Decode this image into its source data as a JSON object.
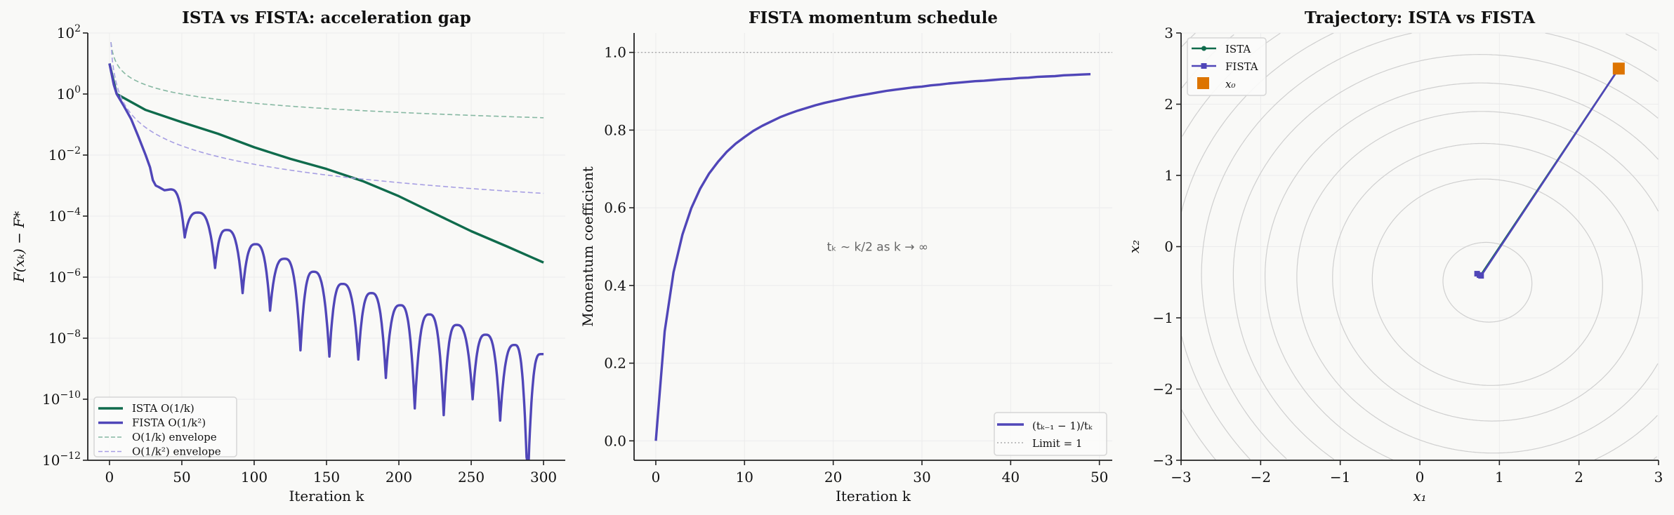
{
  "colors": {
    "background": "#f9f9f7",
    "ista": "#0f6b4c",
    "fista": "#5046b8",
    "env1": "#86b8a2",
    "env2": "#a79fe3",
    "x0": "#dd7400",
    "contour": "#cfcfcf",
    "grid": "#ececec",
    "limit": "#aaaaaa"
  },
  "chart_data": [
    {
      "type": "line",
      "title": "ISTA vs FISTA: acceleration gap",
      "xlabel": "Iteration k",
      "ylabel": "F(xₖ) − F*",
      "yscale": "log",
      "xlim": [
        -15,
        315
      ],
      "ylim": [
        1e-12,
        100
      ],
      "xticks": [
        {
          "v": 0,
          "label": "0"
        },
        {
          "v": 50,
          "label": "50"
        },
        {
          "v": 100,
          "label": "100"
        },
        {
          "v": 150,
          "label": "150"
        },
        {
          "v": 200,
          "label": "200"
        },
        {
          "v": 250,
          "label": "250"
        },
        {
          "v": 300,
          "label": "300"
        }
      ],
      "yticks": [
        {
          "v": 100,
          "base": "10",
          "exp": "2"
        },
        {
          "v": 1,
          "base": "10",
          "exp": "0"
        },
        {
          "v": 0.01,
          "base": "10",
          "exp": "−2"
        },
        {
          "v": 0.0001,
          "base": "10",
          "exp": "−4"
        },
        {
          "v": 1e-06,
          "base": "10",
          "exp": "−6"
        },
        {
          "v": 1e-08,
          "base": "10",
          "exp": "−8"
        },
        {
          "v": 1e-10,
          "base": "10",
          "exp": "−10"
        },
        {
          "v": 1e-12,
          "base": "10",
          "exp": "−12"
        }
      ],
      "grid": true,
      "legend_position": "lower-left",
      "series": [
        {
          "name": "ISTA O(1/k)",
          "color_key": "ista",
          "style": "solid",
          "points": [
            [
              0,
              10
            ],
            [
              5,
              1.0
            ],
            [
              25,
              0.3
            ],
            [
              50,
              0.12
            ],
            [
              75,
              0.05
            ],
            [
              100,
              0.018
            ],
            [
              125,
              0.0075
            ],
            [
              150,
              0.0035
            ],
            [
              175,
              0.0014
            ],
            [
              200,
              0.00045
            ],
            [
              225,
              0.00012
            ],
            [
              250,
              3.2e-05
            ],
            [
              275,
              1e-05
            ],
            [
              300,
              3e-06
            ]
          ]
        },
        {
          "name": "FISTA O(1/k²)",
          "color_key": "fista",
          "style": "solid",
          "points": [
            [
              0,
              10
            ],
            [
              3,
              2
            ],
            [
              5,
              1
            ],
            [
              10,
              0.4
            ],
            [
              15,
              0.15
            ],
            [
              20,
              0.04
            ],
            [
              25,
              0.01
            ],
            [
              28,
              0.004
            ],
            [
              30,
              0.0015
            ],
            [
              32,
              0.001
            ],
            [
              34,
              0.0009
            ],
            [
              38,
              0.0007
            ],
            [
              42,
              0.00075
            ],
            [
              52,
              2e-05
            ],
            [
              61,
              0.00013
            ],
            [
              73,
              2e-06
            ],
            [
              81,
              3.5e-05
            ],
            [
              92,
              3e-07
            ],
            [
              101,
              1.2e-05
            ],
            [
              111,
              8e-08
            ],
            [
              121,
              4e-06
            ],
            [
              132,
              4e-09
            ],
            [
              141,
              1.5e-06
            ],
            [
              152,
              2.5e-09
            ],
            [
              161,
              6e-07
            ],
            [
              172,
              2e-09
            ],
            [
              181,
              3e-07
            ],
            [
              191,
              5e-10
            ],
            [
              201,
              1.2e-07
            ],
            [
              211,
              5e-11
            ],
            [
              221,
              6e-08
            ],
            [
              231,
              3e-11
            ],
            [
              240,
              2.7e-08
            ],
            [
              251,
              1e-10
            ],
            [
              260,
              1.3e-08
            ],
            [
              270,
              2e-11
            ],
            [
              280,
              6e-09
            ],
            [
              289,
              1e-13
            ],
            [
              298,
              3e-09
            ],
            [
              300,
              3e-09
            ]
          ]
        },
        {
          "name": "O(1/k) envelope",
          "color_key": "env1",
          "style": "dashed",
          "formula_C": 50,
          "power": 1,
          "krange": [
            1,
            300
          ]
        },
        {
          "name": "O(1/k²) envelope",
          "color_key": "env2",
          "style": "dashed",
          "formula_C": 50,
          "power": 2,
          "krange": [
            1,
            300
          ]
        }
      ]
    },
    {
      "type": "line",
      "title": "FISTA momentum schedule",
      "xlabel": "Iteration k",
      "ylabel": "Momentum coefficient",
      "xlim": [
        -2.45,
        51.45
      ],
      "ylim": [
        -0.05,
        1.05
      ],
      "xticks": [
        {
          "v": 0,
          "label": "0"
        },
        {
          "v": 10,
          "label": "10"
        },
        {
          "v": 20,
          "label": "20"
        },
        {
          "v": 30,
          "label": "30"
        },
        {
          "v": 40,
          "label": "40"
        },
        {
          "v": 50,
          "label": "50"
        }
      ],
      "yticks": [
        {
          "v": 0,
          "label": "0.0"
        },
        {
          "v": 0.2,
          "label": "0.2"
        },
        {
          "v": 0.4,
          "label": "0.4"
        },
        {
          "v": 0.6,
          "label": "0.6"
        },
        {
          "v": 0.8,
          "label": "0.8"
        },
        {
          "v": 1.0,
          "label": "1.0"
        }
      ],
      "grid": true,
      "legend_position": "lower-right",
      "annotation": {
        "text": "tₖ ∼ k/2 as k → ∞",
        "x": 25,
        "y": 0.5
      },
      "series": [
        {
          "name": "(tₖ₋₁ − 1)/tₖ",
          "color_key": "fista",
          "style": "solid",
          "values": [
            0,
            0.282,
            0.434,
            0.531,
            0.599,
            0.649,
            0.688,
            0.718,
            0.744,
            0.765,
            0.782,
            0.798,
            0.811,
            0.822,
            0.833,
            0.842,
            0.85,
            0.857,
            0.864,
            0.87,
            0.875,
            0.88,
            0.885,
            0.889,
            0.893,
            0.897,
            0.901,
            0.904,
            0.907,
            0.91,
            0.912,
            0.915,
            0.917,
            0.92,
            0.922,
            0.924,
            0.926,
            0.927,
            0.929,
            0.931,
            0.932,
            0.934,
            0.935,
            0.937,
            0.938,
            0.939,
            0.941,
            0.942,
            0.943,
            0.944
          ]
        },
        {
          "name": "Limit = 1",
          "color_key": "limit",
          "style": "dotted",
          "y": 1.0
        }
      ]
    },
    {
      "type": "scatter",
      "title": "Trajectory: ISTA vs FISTA",
      "xlabel": "x₁",
      "ylabel": "x₂",
      "xlim": [
        -3,
        3
      ],
      "ylim": [
        -3,
        3
      ],
      "xticks": [
        {
          "v": -3,
          "label": "−3"
        },
        {
          "v": -2,
          "label": "−2"
        },
        {
          "v": -1,
          "label": "−1"
        },
        {
          "v": 0,
          "label": "0"
        },
        {
          "v": 1,
          "label": "1"
        },
        {
          "v": 2,
          "label": "2"
        },
        {
          "v": 3,
          "label": "3"
        }
      ],
      "yticks": [
        {
          "v": -3,
          "label": "−3"
        },
        {
          "v": -2,
          "label": "−2"
        },
        {
          "v": -1,
          "label": "−1"
        },
        {
          "v": 0,
          "label": "0"
        },
        {
          "v": 1,
          "label": "1"
        },
        {
          "v": 2,
          "label": "2"
        },
        {
          "v": 3,
          "label": "3"
        }
      ],
      "grid": true,
      "legend_position": "upper-left",
      "contours": {
        "center": [
          0.85,
          -0.5
        ],
        "x_to_y_ratio": 1.12,
        "tilt_deg": -8,
        "semi_axes_x": [
          0.56,
          1.45,
          1.95,
          2.4,
          2.8,
          3.2,
          3.6,
          3.95,
          4.3,
          4.65,
          5.0,
          5.35,
          5.7,
          6.05
        ]
      },
      "series": [
        {
          "name": "ISTA",
          "color_key": "ista",
          "marker": "circle",
          "points": [
            [
              2.5,
              2.5
            ],
            [
              0.76,
              -0.41
            ],
            [
              0.74,
              -0.39
            ]
          ]
        },
        {
          "name": "FISTA",
          "color_key": "fista",
          "marker": "square",
          "points": [
            [
              2.5,
              2.5
            ],
            [
              0.77,
              -0.41
            ],
            [
              0.72,
              -0.38
            ],
            [
              0.75,
              -0.4
            ]
          ]
        },
        {
          "name": "x₀",
          "color_key": "x0",
          "marker": "big-square",
          "points": [
            [
              2.5,
              2.5
            ]
          ]
        }
      ]
    }
  ]
}
